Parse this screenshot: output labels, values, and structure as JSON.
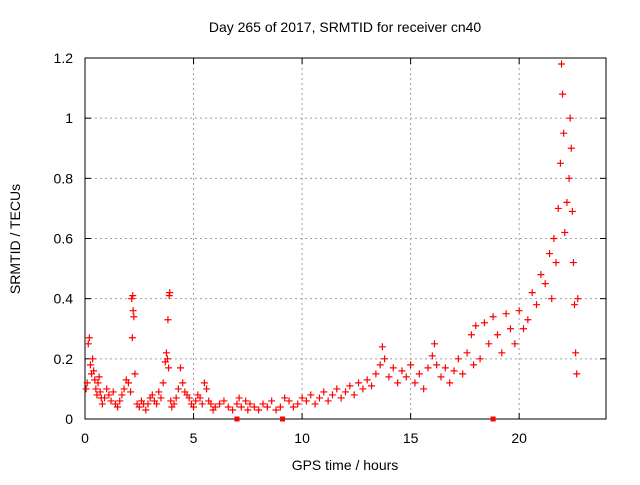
{
  "chart_data": {
    "type": "scatter",
    "title": "Day 265 of 2017, SRMTID for receiver cn40",
    "xlabel": "GPS time / hours",
    "ylabel": "SRMTID / TECUs",
    "xlim": [
      0,
      24
    ],
    "ylim": [
      0,
      1.2
    ],
    "xticks": [
      0,
      5,
      10,
      15,
      20
    ],
    "xtick_labels": [
      "0",
      "5",
      "10",
      "15",
      "20"
    ],
    "yticks": [
      0,
      0.2,
      0.4,
      0.6,
      0.8,
      1.0,
      1.2
    ],
    "ytick_labels": [
      "0",
      "0.2",
      "0.4",
      "0.6",
      "0.8",
      "1",
      "1.2"
    ],
    "grid": true,
    "marker": "+",
    "color": "#ff0000",
    "series": [
      {
        "name": "SRMTID",
        "points": [
          [
            0.05,
            0.1
          ],
          [
            0.1,
            0.12
          ],
          [
            0.15,
            0.25
          ],
          [
            0.2,
            0.27
          ],
          [
            0.25,
            0.18
          ],
          [
            0.3,
            0.15
          ],
          [
            0.35,
            0.2
          ],
          [
            0.4,
            0.16
          ],
          [
            0.45,
            0.13
          ],
          [
            0.5,
            0.1
          ],
          [
            0.55,
            0.08
          ],
          [
            0.6,
            0.12
          ],
          [
            0.65,
            0.14
          ],
          [
            0.7,
            0.09
          ],
          [
            0.75,
            0.07
          ],
          [
            0.8,
            0.05
          ],
          [
            0.9,
            0.07
          ],
          [
            1.0,
            0.1
          ],
          [
            1.1,
            0.08
          ],
          [
            1.2,
            0.06
          ],
          [
            1.3,
            0.09
          ],
          [
            1.4,
            0.05
          ],
          [
            1.5,
            0.04
          ],
          [
            1.6,
            0.06
          ],
          [
            1.7,
            0.08
          ],
          [
            1.8,
            0.1
          ],
          [
            1.9,
            0.13
          ],
          [
            2.0,
            0.12
          ],
          [
            2.1,
            0.09
          ],
          [
            2.15,
            0.4
          ],
          [
            2.2,
            0.41
          ],
          [
            2.22,
            0.36
          ],
          [
            2.25,
            0.34
          ],
          [
            2.18,
            0.27
          ],
          [
            2.3,
            0.15
          ],
          [
            2.4,
            0.05
          ],
          [
            2.5,
            0.04
          ],
          [
            2.6,
            0.06
          ],
          [
            2.7,
            0.05
          ],
          [
            2.8,
            0.03
          ],
          [
            2.9,
            0.05
          ],
          [
            3.0,
            0.07
          ],
          [
            3.1,
            0.08
          ],
          [
            3.2,
            0.06
          ],
          [
            3.3,
            0.05
          ],
          [
            3.4,
            0.09
          ],
          [
            3.5,
            0.07
          ],
          [
            3.6,
            0.12
          ],
          [
            3.7,
            0.19
          ],
          [
            3.75,
            0.22
          ],
          [
            3.8,
            0.2
          ],
          [
            3.85,
            0.17
          ],
          [
            3.82,
            0.33
          ],
          [
            3.88,
            0.41
          ],
          [
            3.9,
            0.42
          ],
          [
            3.95,
            0.06
          ],
          [
            4.0,
            0.04
          ],
          [
            4.1,
            0.05
          ],
          [
            4.2,
            0.07
          ],
          [
            4.3,
            0.1
          ],
          [
            4.4,
            0.17
          ],
          [
            4.5,
            0.12
          ],
          [
            4.6,
            0.09
          ],
          [
            4.7,
            0.08
          ],
          [
            4.8,
            0.07
          ],
          [
            4.9,
            0.05
          ],
          [
            5.0,
            0.04
          ],
          [
            5.1,
            0.06
          ],
          [
            5.2,
            0.08
          ],
          [
            5.3,
            0.07
          ],
          [
            5.4,
            0.05
          ],
          [
            5.5,
            0.12
          ],
          [
            5.6,
            0.1
          ],
          [
            5.7,
            0.06
          ],
          [
            5.8,
            0.05
          ],
          [
            5.9,
            0.03
          ],
          [
            6.0,
            0.04
          ],
          [
            6.2,
            0.05
          ],
          [
            6.4,
            0.06
          ],
          [
            6.6,
            0.04
          ],
          [
            6.8,
            0.03
          ],
          [
            7.0,
            0.05
          ],
          [
            7.1,
            0.07
          ],
          [
            7.2,
            0.04
          ],
          [
            7.4,
            0.06
          ],
          [
            7.5,
            0.03
          ],
          [
            7.6,
            0.05
          ],
          [
            7.8,
            0.04
          ],
          [
            8.0,
            0.03
          ],
          [
            8.2,
            0.05
          ],
          [
            8.4,
            0.04
          ],
          [
            8.6,
            0.06
          ],
          [
            8.8,
            0.03
          ],
          [
            9.0,
            0.04
          ],
          [
            9.2,
            0.07
          ],
          [
            9.4,
            0.06
          ],
          [
            9.6,
            0.04
          ],
          [
            9.8,
            0.05
          ],
          [
            10.0,
            0.07
          ],
          [
            10.2,
            0.06
          ],
          [
            10.4,
            0.08
          ],
          [
            10.6,
            0.05
          ],
          [
            10.8,
            0.07
          ],
          [
            11.0,
            0.09
          ],
          [
            11.2,
            0.06
          ],
          [
            11.4,
            0.08
          ],
          [
            11.6,
            0.1
          ],
          [
            11.8,
            0.07
          ],
          [
            12.0,
            0.09
          ],
          [
            12.2,
            0.11
          ],
          [
            12.4,
            0.08
          ],
          [
            12.6,
            0.12
          ],
          [
            12.8,
            0.1
          ],
          [
            13.0,
            0.13
          ],
          [
            13.2,
            0.11
          ],
          [
            13.4,
            0.15
          ],
          [
            13.6,
            0.18
          ],
          [
            13.7,
            0.24
          ],
          [
            13.8,
            0.2
          ],
          [
            14.0,
            0.14
          ],
          [
            14.2,
            0.17
          ],
          [
            14.4,
            0.12
          ],
          [
            14.6,
            0.16
          ],
          [
            14.8,
            0.14
          ],
          [
            15.0,
            0.18
          ],
          [
            15.2,
            0.12
          ],
          [
            15.4,
            0.15
          ],
          [
            15.6,
            0.1
          ],
          [
            15.8,
            0.17
          ],
          [
            16.0,
            0.21
          ],
          [
            16.1,
            0.25
          ],
          [
            16.2,
            0.18
          ],
          [
            16.4,
            0.14
          ],
          [
            16.6,
            0.17
          ],
          [
            16.8,
            0.12
          ],
          [
            17.0,
            0.16
          ],
          [
            17.2,
            0.2
          ],
          [
            17.4,
            0.15
          ],
          [
            17.6,
            0.22
          ],
          [
            17.8,
            0.28
          ],
          [
            17.9,
            0.18
          ],
          [
            18.0,
            0.31
          ],
          [
            18.2,
            0.2
          ],
          [
            18.4,
            0.32
          ],
          [
            18.6,
            0.25
          ],
          [
            18.8,
            0.34
          ],
          [
            19.0,
            0.28
          ],
          [
            19.2,
            0.22
          ],
          [
            19.4,
            0.35
          ],
          [
            19.6,
            0.3
          ],
          [
            19.8,
            0.25
          ],
          [
            20.0,
            0.36
          ],
          [
            20.2,
            0.3
          ],
          [
            20.4,
            0.33
          ],
          [
            20.6,
            0.42
          ],
          [
            20.8,
            0.38
          ],
          [
            21.0,
            0.48
          ],
          [
            21.2,
            0.45
          ],
          [
            21.4,
            0.55
          ],
          [
            21.5,
            0.4
          ],
          [
            21.6,
            0.6
          ],
          [
            21.7,
            0.52
          ],
          [
            21.8,
            0.7
          ],
          [
            21.9,
            0.85
          ],
          [
            21.95,
            1.18
          ],
          [
            22.0,
            1.08
          ],
          [
            22.05,
            0.95
          ],
          [
            22.1,
            0.62
          ],
          [
            22.2,
            0.72
          ],
          [
            22.3,
            0.8
          ],
          [
            22.35,
            1.0
          ],
          [
            22.4,
            0.9
          ],
          [
            22.45,
            0.69
          ],
          [
            22.5,
            0.52
          ],
          [
            22.55,
            0.38
          ],
          [
            22.6,
            0.22
          ],
          [
            22.65,
            0.15
          ],
          [
            22.7,
            0.4
          ]
        ]
      }
    ],
    "border_markers": [
      7.0,
      9.1,
      18.8
    ]
  }
}
